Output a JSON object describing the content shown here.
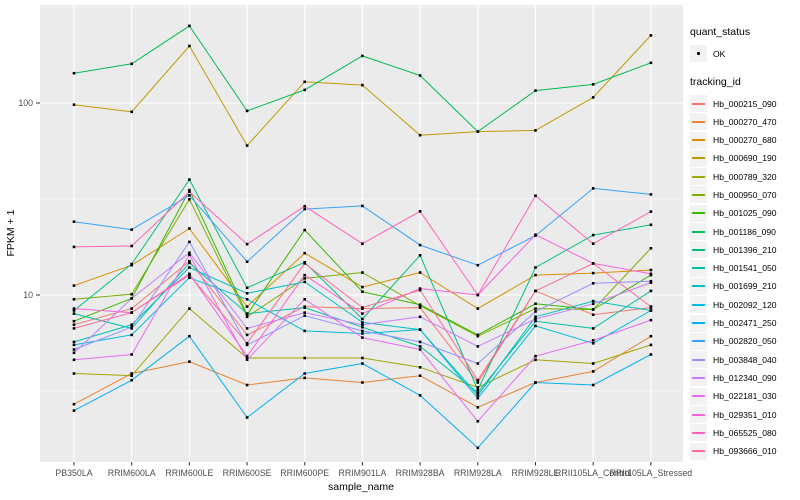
{
  "chart_data": {
    "type": "line",
    "title": "",
    "xlabel": "sample_name",
    "ylabel": "FPKM + 1",
    "y_scale": "log10",
    "ylim": [
      1.35,
      324
    ],
    "y_ticks": [
      100,
      10
    ],
    "y_minor_gridlines": [
      316.2,
      31.62,
      3.162
    ],
    "grid": true,
    "legend_position": "right",
    "panel_bg": "#EBEBEB",
    "gridline_color": "#FFFFFF",
    "marker_color": "#000000",
    "tick_label_color": "#4D4D4D",
    "categories": [
      "PB350LA",
      "RRIM600LA",
      "RRIM600LE",
      "RRIM600SE",
      "RRIM600PE",
      "RRIM901LA",
      "RRIM928BA",
      "RRIM928LA",
      "RRIM928LE",
      "RRII105LA_Control",
      "RRII105LA_Stressed"
    ],
    "series": [
      {
        "name": "Hb_000215_090",
        "color": "#F8766D",
        "values": [
          7.0,
          8.5,
          15.0,
          6.2,
          8.7,
          8.5,
          8.6,
          3.5,
          10.5,
          7.9,
          8.6
        ]
      },
      {
        "name": "Hb_000270_470",
        "color": "#EA8331",
        "values": [
          2.7,
          3.9,
          4.5,
          3.4,
          3.7,
          3.5,
          3.8,
          2.6,
          3.5,
          4.0,
          6.1
        ]
      },
      {
        "name": "Hb_000270_680",
        "color": "#D89000",
        "values": [
          11.2,
          14.3,
          22.2,
          8.7,
          16.5,
          11.0,
          13.1,
          8.5,
          12.7,
          13.0,
          13.5
        ]
      },
      {
        "name": "Hb_000690_190",
        "color": "#C09B00",
        "values": [
          98,
          90,
          198,
          60,
          129,
          124,
          68,
          71,
          72,
          107,
          225
        ]
      },
      {
        "name": "Hb_000789_320",
        "color": "#A3A500",
        "values": [
          3.9,
          3.8,
          8.5,
          4.7,
          4.7,
          4.7,
          4.2,
          3.3,
          4.6,
          4.4,
          5.5
        ]
      },
      {
        "name": "Hb_000950_070",
        "color": "#7CAE00",
        "values": [
          9.5,
          10.1,
          31.5,
          7.7,
          12.2,
          13.1,
          8.8,
          6.1,
          8.5,
          8.4,
          17.5
        ]
      },
      {
        "name": "Hb_001025_090",
        "color": "#39B600",
        "values": [
          7.3,
          9.6,
          35.2,
          7.9,
          21.8,
          10.4,
          8.9,
          6.2,
          9.0,
          8.4,
          12.7
        ]
      },
      {
        "name": "Hb_001186_090",
        "color": "#00BB4E",
        "values": [
          143,
          160,
          252,
          91,
          117,
          176,
          139,
          71,
          116,
          125,
          162
        ]
      },
      {
        "name": "Hb_001396_210",
        "color": "#00BF7D",
        "values": [
          8.3,
          14.5,
          39.9,
          10.9,
          14.8,
          7.5,
          16.1,
          3.2,
          13.9,
          20.5,
          23.2
        ]
      },
      {
        "name": "Hb_001541_050",
        "color": "#00C1A3",
        "values": [
          8.0,
          6.7,
          14.7,
          8.0,
          8.6,
          6.8,
          5.4,
          3.1,
          7.3,
          6.7,
          10.5
        ]
      },
      {
        "name": "Hb_001699_210",
        "color": "#00BFC4",
        "values": [
          5.7,
          7.0,
          13.9,
          10.2,
          11.7,
          7.2,
          6.6,
          3.0,
          7.7,
          9.3,
          8.3
        ]
      },
      {
        "name": "Hb_002092_120",
        "color": "#00BAE0",
        "values": [
          5.5,
          6.2,
          12.3,
          9.5,
          6.5,
          6.3,
          6.6,
          2.9,
          6.9,
          5.6,
          8.3
        ]
      },
      {
        "name": "Hb_002471_250",
        "color": "#00B0F6",
        "values": [
          2.5,
          3.6,
          6.1,
          2.3,
          3.9,
          4.4,
          3.0,
          1.6,
          3.5,
          3.4,
          4.9
        ]
      },
      {
        "name": "Hb_002820_050",
        "color": "#35A2FF",
        "values": [
          24.1,
          21.9,
          33.0,
          14.9,
          28.0,
          29.1,
          18.2,
          14.3,
          20.4,
          35.9,
          33.4
        ]
      },
      {
        "name": "Hb_003848_040",
        "color": "#9590FF",
        "values": [
          5.2,
          6.8,
          18.9,
          5.5,
          7.8,
          6.5,
          5.7,
          4.4,
          8.2,
          11.5,
          11.8
        ]
      },
      {
        "name": "Hb_012340_090",
        "color": "#C77CFF",
        "values": [
          5.0,
          9.6,
          16.6,
          6.7,
          8.1,
          7.0,
          7.7,
          5.4,
          7.5,
          9.0,
          11.6
        ]
      },
      {
        "name": "Hb_022181_030",
        "color": "#E76BF3",
        "values": [
          4.6,
          4.9,
          16.2,
          4.6,
          9.5,
          6.0,
          5.2,
          2.2,
          4.8,
          5.8,
          7.4
        ]
      },
      {
        "name": "Hb_029351_010",
        "color": "#FA62DB",
        "values": [
          8.5,
          8.1,
          12.9,
          4.8,
          12.7,
          8.0,
          10.8,
          10.0,
          20.6,
          14.6,
          12.9
        ]
      },
      {
        "name": "Hb_065525_080",
        "color": "#FF62BC",
        "values": [
          17.8,
          18.0,
          34.5,
          18.4,
          29.0,
          18.5,
          27.3,
          10.0,
          32.9,
          18.5,
          27.2
        ]
      },
      {
        "name": "Hb_093666_010",
        "color": "#FF6A98",
        "values": [
          6.7,
          8.1,
          12.7,
          5.6,
          14.6,
          8.6,
          10.6,
          3.6,
          10.5,
          14.6,
          8.7
        ]
      }
    ]
  },
  "axes": {
    "x_title": "sample_name",
    "y_title": "FPKM + 1",
    "y_tick_labels": [
      "100",
      "10"
    ]
  },
  "legend": {
    "quant_title": "quant_status",
    "quant_ok_label": "OK",
    "tracking_title": "tracking_id"
  }
}
